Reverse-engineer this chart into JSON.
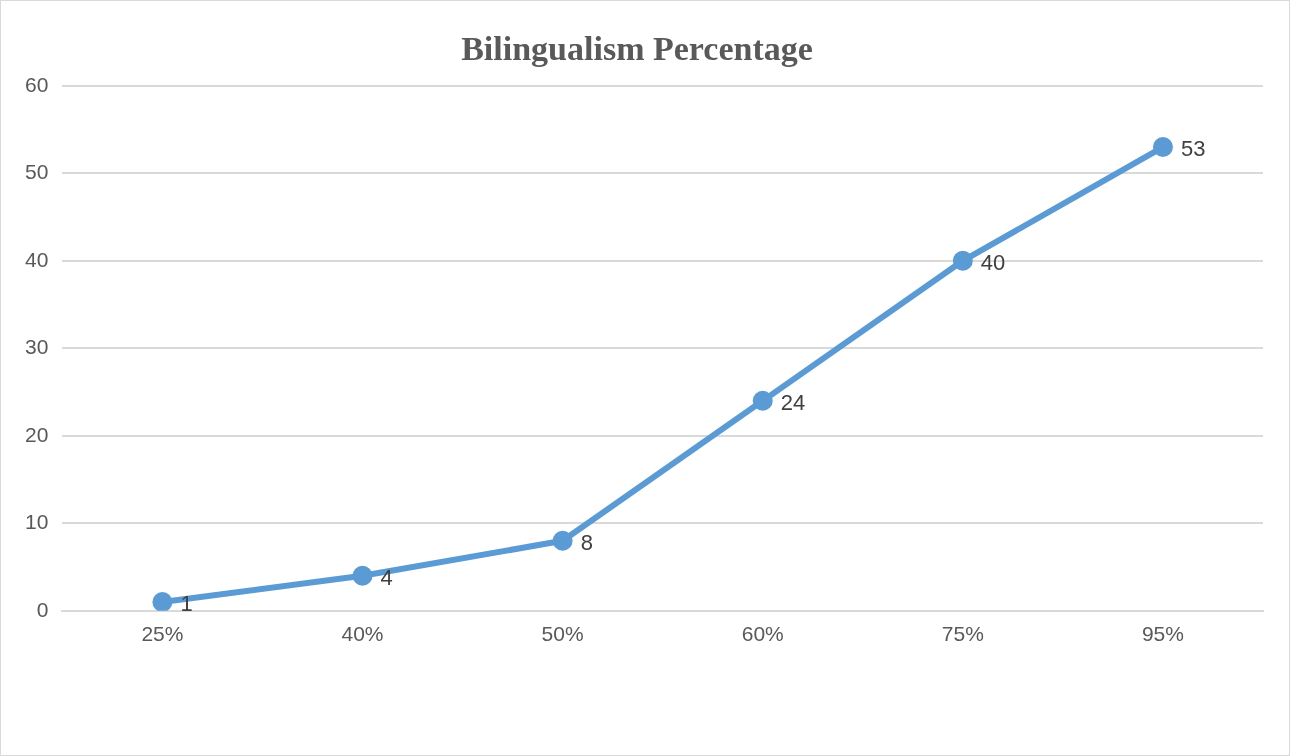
{
  "chart_data": {
    "type": "line",
    "title": "Bilingualism Percentage",
    "categories": [
      "25%",
      "40%",
      "50%",
      "60%",
      "75%",
      "95%"
    ],
    "series": [
      {
        "color": "#5b9bd5",
        "values": [
          1,
          4,
          8,
          24,
          40,
          53
        ]
      }
    ],
    "ylim": [
      0,
      60
    ],
    "yticks": [
      0,
      10,
      20,
      30,
      40,
      50,
      60
    ],
    "grid": "y",
    "legend": false,
    "marker": "circle",
    "line_style": "solid",
    "data_labels": true
  }
}
